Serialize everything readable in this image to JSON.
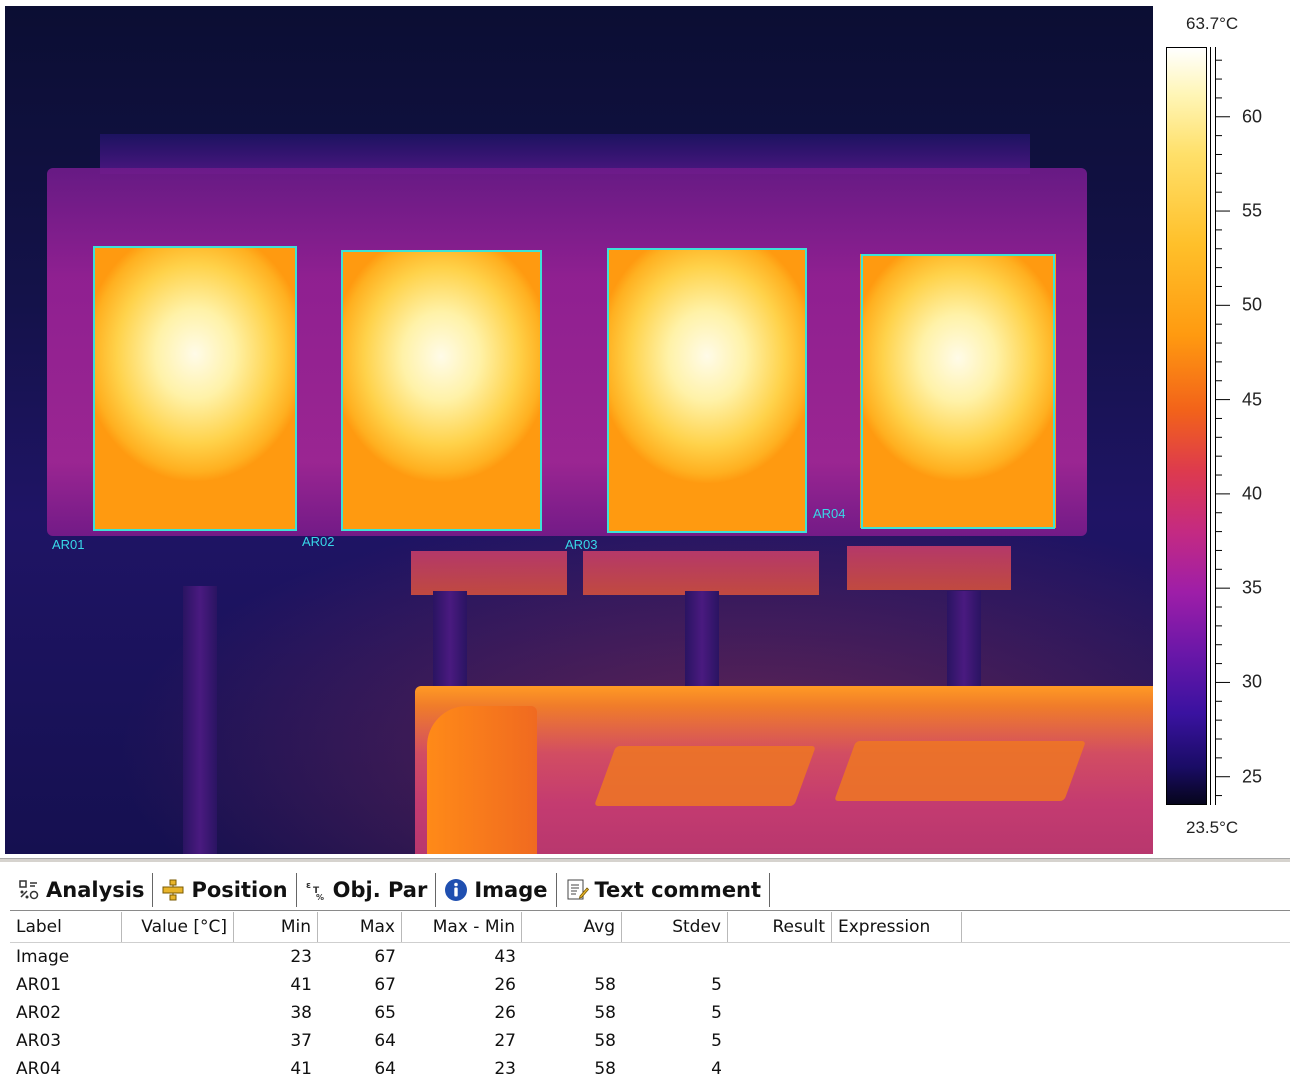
{
  "scale": {
    "max_label": "63.7°C",
    "min_label": "23.5°C",
    "ticks": [
      "60",
      "55",
      "50",
      "45",
      "40",
      "35",
      "30",
      "25"
    ],
    "tick_values": [
      60,
      55,
      50,
      45,
      40,
      35,
      30,
      25
    ],
    "range": [
      23.5,
      63.7
    ]
  },
  "rois": [
    "AR01",
    "AR02",
    "AR03",
    "AR04"
  ],
  "tabs": [
    "Analysis",
    "Position",
    "Obj. Par",
    "Image",
    "Text comment"
  ],
  "tab_icons": [
    "analysis-icon",
    "position-icon",
    "object-parameters-icon",
    "info-icon",
    "text-comment-icon"
  ],
  "table": {
    "headers": [
      "Label",
      "Value [°C]",
      "Min",
      "Max",
      "Max - Min",
      "Avg",
      "Stdev",
      "Result",
      "Expression"
    ],
    "rows": [
      [
        "Image",
        "",
        "23",
        "67",
        "43",
        "",
        "",
        "",
        ""
      ],
      [
        "AR01",
        "",
        "41",
        "67",
        "26",
        "58",
        "5",
        "",
        ""
      ],
      [
        "AR02",
        "",
        "38",
        "65",
        "26",
        "58",
        "5",
        "",
        ""
      ],
      [
        "AR03",
        "",
        "37",
        "64",
        "27",
        "58",
        "5",
        "",
        ""
      ],
      [
        "AR04",
        "",
        "41",
        "64",
        "23",
        "58",
        "4",
        "",
        ""
      ]
    ]
  },
  "colors": {
    "roi_outline": "#3de2d6",
    "roi_label": "#38d8e8"
  }
}
